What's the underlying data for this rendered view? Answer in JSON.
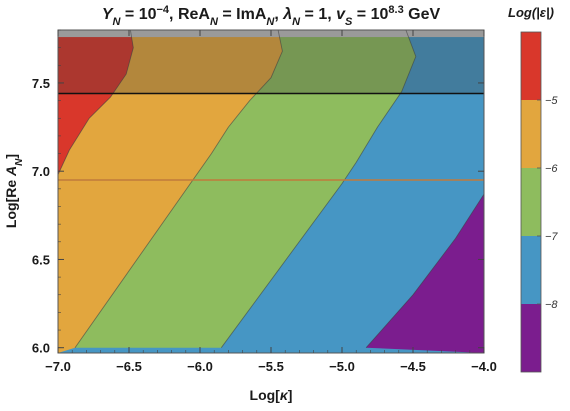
{
  "chart_data": {
    "type": "contour",
    "title": {
      "text": "Y_N = 10^-4, ReA_N = ImA_N, λ_N = 1, v_S = 10^8.3 GeV",
      "segments": [
        {
          "t": "Y",
          "style": "italic"
        },
        {
          "t": "N",
          "style": "sub"
        },
        {
          "t": " = 10"
        },
        {
          "t": "−4",
          "style": "sup"
        },
        {
          "t": ", ReA"
        },
        {
          "t": "N",
          "style": "sub"
        },
        {
          "t": " = ImA"
        },
        {
          "t": "N",
          "style": "sub"
        },
        {
          "t": ", "
        },
        {
          "t": "λ",
          "style": "italic"
        },
        {
          "t": "N",
          "style": "sub"
        },
        {
          "t": " = 1, "
        },
        {
          "t": "v",
          "style": "italic"
        },
        {
          "t": "S",
          "style": "sub"
        },
        {
          "t": " = 10"
        },
        {
          "t": "8.3",
          "style": "sup"
        },
        {
          "t": " GeV"
        }
      ]
    },
    "xlabel": "Log[κ]",
    "ylabel": "Log[Re A_N]",
    "ylabel_parts": {
      "prefix": "Log[Re ",
      "var": "A",
      "sub": "N",
      "suffix": "]"
    },
    "xlim": [
      -7.0,
      -4.0
    ],
    "ylim": [
      5.97,
      7.8
    ],
    "xticks": [
      -7.0,
      -6.5,
      -6.0,
      -5.5,
      -5.0,
      -4.5,
      -4.0
    ],
    "xtick_labels": [
      "−7.0",
      "−6.5",
      "−6.0",
      "−5.5",
      "−5.0",
      "−4.5",
      "−4.0"
    ],
    "yticks": [
      6.0,
      6.5,
      7.0,
      7.5
    ],
    "ytick_labels": [
      "6.0",
      "6.5",
      "7.0",
      "7.5"
    ],
    "z_label": "Log(|ε|)",
    "z_levels": [
      -8,
      -7,
      -6,
      -5
    ],
    "z_bands": [
      {
        "range": "< -8",
        "color": "#7b1d8e"
      },
      {
        "range": "-8 to -7",
        "color": "#4696c4"
      },
      {
        "range": "-7 to -6",
        "color": "#8ebc5e"
      },
      {
        "range": "-6 to -5",
        "color": "#e2a63e"
      },
      {
        "range": "> -5",
        "color": "#d9372b"
      }
    ],
    "colorbar_tick_labels": [
      "−8",
      "−7",
      "−6",
      "−5"
    ],
    "contours": [
      {
        "level": -5,
        "points": [
          [
            -6.49,
            7.8
          ],
          [
            -6.47,
            7.7
          ],
          [
            -6.52,
            7.55
          ],
          [
            -6.63,
            7.42
          ],
          [
            -6.78,
            7.3
          ],
          [
            -6.92,
            7.12
          ],
          [
            -7.0,
            6.98
          ]
        ]
      },
      {
        "level": -6,
        "points": [
          [
            -5.45,
            7.8
          ],
          [
            -5.42,
            7.68
          ],
          [
            -5.5,
            7.53
          ],
          [
            -5.65,
            7.4
          ],
          [
            -5.8,
            7.25
          ],
          [
            -5.92,
            7.1
          ],
          [
            -6.88,
            6.0
          ]
        ]
      },
      {
        "level": -7,
        "points": [
          [
            -4.55,
            7.8
          ],
          [
            -4.48,
            7.65
          ],
          [
            -4.58,
            7.45
          ],
          [
            -4.75,
            7.25
          ],
          [
            -4.9,
            7.05
          ],
          [
            -5.0,
            6.93
          ],
          [
            -5.85,
            6.0
          ]
        ]
      },
      {
        "level": -8,
        "points": [
          [
            -4.0,
            6.87
          ],
          [
            -4.2,
            6.62
          ],
          [
            -4.5,
            6.3
          ],
          [
            -4.83,
            6.0
          ]
        ]
      }
    ],
    "shaded_region": {
      "description": "semi-transparent dark overlay above upper horizontal line",
      "y_min": 7.44,
      "y_max": 7.8,
      "color": "#3a3a3a",
      "opacity": 0.28
    },
    "horizontal_lines": [
      {
        "y": 7.44,
        "color": "#111111"
      },
      {
        "y": 6.95,
        "color": "#c07a3c"
      }
    ],
    "top_band": {
      "y_min": 7.76,
      "y_max": 7.8,
      "color": "#9a9a9a"
    }
  }
}
